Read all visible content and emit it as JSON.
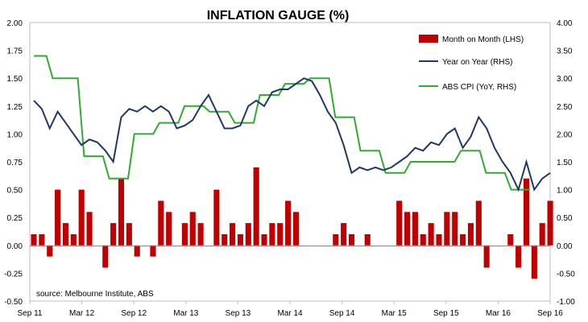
{
  "chart_data": {
    "type": "bar+line",
    "title": "INFLATION GAUGE (%)",
    "note": "source: Melbourne Institute, ABS",
    "x_tick_labels": [
      "Sep 11",
      "Mar 12",
      "Sep 12",
      "Mar 13",
      "Sep 13",
      "Mar 14",
      "Sep 14",
      "Mar 15",
      "Sep 15",
      "Mar 16",
      "Sep 16"
    ],
    "x_start": "Sep 2011",
    "x_end": "Sep 2016",
    "y_left": {
      "min": -0.5,
      "max": 2.0,
      "ticks": [
        "-0.50",
        "-0.25",
        "0.00",
        "0.25",
        "0.50",
        "0.75",
        "1.00",
        "1.25",
        "1.50",
        "1.75",
        "2.00"
      ]
    },
    "y_right": {
      "min": -1.0,
      "max": 4.0,
      "ticks": [
        "-1.00",
        "-0.50",
        "0.00",
        "0.50",
        "1.00",
        "1.50",
        "2.00",
        "2.50",
        "3.00",
        "3.50",
        "4.00"
      ]
    },
    "legend_position": "top-right",
    "series": [
      {
        "name": "Month on Month (LHS)",
        "type": "bar",
        "axis": "left",
        "color": "#c00000",
        "values": [
          0.1,
          0.1,
          -0.1,
          0.5,
          0.2,
          0.1,
          0.5,
          0.3,
          0.0,
          -0.2,
          0.2,
          0.6,
          0.2,
          -0.1,
          0.0,
          -0.1,
          0.4,
          0.3,
          0.0,
          0.2,
          0.3,
          0.2,
          0.0,
          0.5,
          0.1,
          0.2,
          0.1,
          0.2,
          0.7,
          0.1,
          0.2,
          0.2,
          0.4,
          0.3,
          0.0,
          0.0,
          0.0,
          0.0,
          0.1,
          0.2,
          0.1,
          0.0,
          0.1,
          0.0,
          0.0,
          0.0,
          0.4,
          0.3,
          0.3,
          0.1,
          0.2,
          0.1,
          0.3,
          0.3,
          0.1,
          0.2,
          0.4,
          -0.2,
          0.0,
          0.0,
          0.1,
          -0.2,
          0.6,
          -0.3,
          0.2,
          0.4
        ]
      },
      {
        "name": "Year on Year (RHS)",
        "type": "line",
        "axis": "right",
        "color": "#1f3864",
        "points": [
          [
            0,
            2.6
          ],
          [
            1,
            2.45
          ],
          [
            2,
            2.1
          ],
          [
            3,
            2.4
          ],
          [
            4,
            2.2
          ],
          [
            5,
            2.0
          ],
          [
            6,
            1.8
          ],
          [
            7,
            1.9
          ],
          [
            8,
            1.85
          ],
          [
            9,
            1.7
          ],
          [
            10,
            1.5
          ],
          [
            11,
            2.3
          ],
          [
            12,
            2.45
          ],
          [
            13,
            2.4
          ],
          [
            14,
            2.5
          ],
          [
            15,
            2.4
          ],
          [
            16,
            2.5
          ],
          [
            17,
            2.4
          ],
          [
            18,
            2.1
          ],
          [
            19,
            2.15
          ],
          [
            20,
            2.25
          ],
          [
            21,
            2.5
          ],
          [
            22,
            2.7
          ],
          [
            23,
            2.4
          ],
          [
            24,
            2.1
          ],
          [
            25,
            2.1
          ],
          [
            26,
            2.15
          ],
          [
            27,
            2.5
          ],
          [
            28,
            2.6
          ],
          [
            29,
            2.5
          ],
          [
            30,
            2.75
          ],
          [
            31,
            2.8
          ],
          [
            32,
            2.8
          ],
          [
            33,
            2.9
          ],
          [
            34,
            3.0
          ],
          [
            35,
            2.95
          ],
          [
            36,
            2.7
          ],
          [
            37,
            2.4
          ],
          [
            38,
            2.2
          ],
          [
            39,
            1.8
          ],
          [
            40,
            1.3
          ],
          [
            41,
            1.4
          ],
          [
            42,
            1.35
          ],
          [
            43,
            1.4
          ],
          [
            44,
            1.35
          ],
          [
            45,
            1.4
          ],
          [
            46,
            1.5
          ],
          [
            47,
            1.6
          ],
          [
            48,
            1.75
          ],
          [
            49,
            1.7
          ],
          [
            50,
            1.85
          ],
          [
            51,
            1.8
          ],
          [
            52,
            2.0
          ],
          [
            53,
            2.1
          ],
          [
            54,
            1.75
          ],
          [
            55,
            1.95
          ],
          [
            56,
            2.3
          ],
          [
            57,
            2.1
          ],
          [
            58,
            1.75
          ],
          [
            59,
            1.5
          ],
          [
            60,
            1.3
          ],
          [
            61,
            1.0
          ],
          [
            62,
            1.5
          ],
          [
            63,
            1.0
          ],
          [
            64,
            1.2
          ],
          [
            65,
            1.3
          ]
        ]
      },
      {
        "name": "ABS CPI (YoY, RHS)",
        "type": "step",
        "axis": "right",
        "color": "#33aa33",
        "points": [
          [
            0,
            3.4
          ],
          [
            2,
            3.4
          ],
          [
            3,
            3.0
          ],
          [
            7,
            3.0
          ],
          [
            8,
            1.6
          ],
          [
            11,
            1.6
          ],
          [
            12,
            1.2
          ],
          [
            15,
            1.2
          ],
          [
            16,
            2.0
          ],
          [
            19,
            2.0
          ],
          [
            20,
            2.2
          ],
          [
            23,
            2.2
          ],
          [
            24,
            2.5
          ],
          [
            27,
            2.5
          ],
          [
            28,
            2.4
          ],
          [
            31,
            2.4
          ],
          [
            32,
            2.2
          ],
          [
            35,
            2.2
          ],
          [
            36,
            2.7
          ],
          [
            39,
            2.7
          ],
          [
            40,
            2.9
          ],
          [
            43,
            2.9
          ],
          [
            44,
            3.0
          ],
          [
            47,
            3.0
          ],
          [
            48,
            2.3
          ],
          [
            51,
            2.3
          ],
          [
            52,
            1.7
          ],
          [
            55,
            1.7
          ],
          [
            56,
            1.3
          ],
          [
            59,
            1.3
          ],
          [
            60,
            1.5
          ],
          [
            63,
            1.5
          ],
          [
            64,
            1.5
          ],
          [
            67,
            1.5
          ],
          [
            68,
            1.7
          ],
          [
            71,
            1.7
          ],
          [
            72,
            1.3
          ],
          [
            75,
            1.3
          ],
          [
            76,
            1.0
          ],
          [
            79,
            1.0
          ]
        ]
      }
    ]
  }
}
